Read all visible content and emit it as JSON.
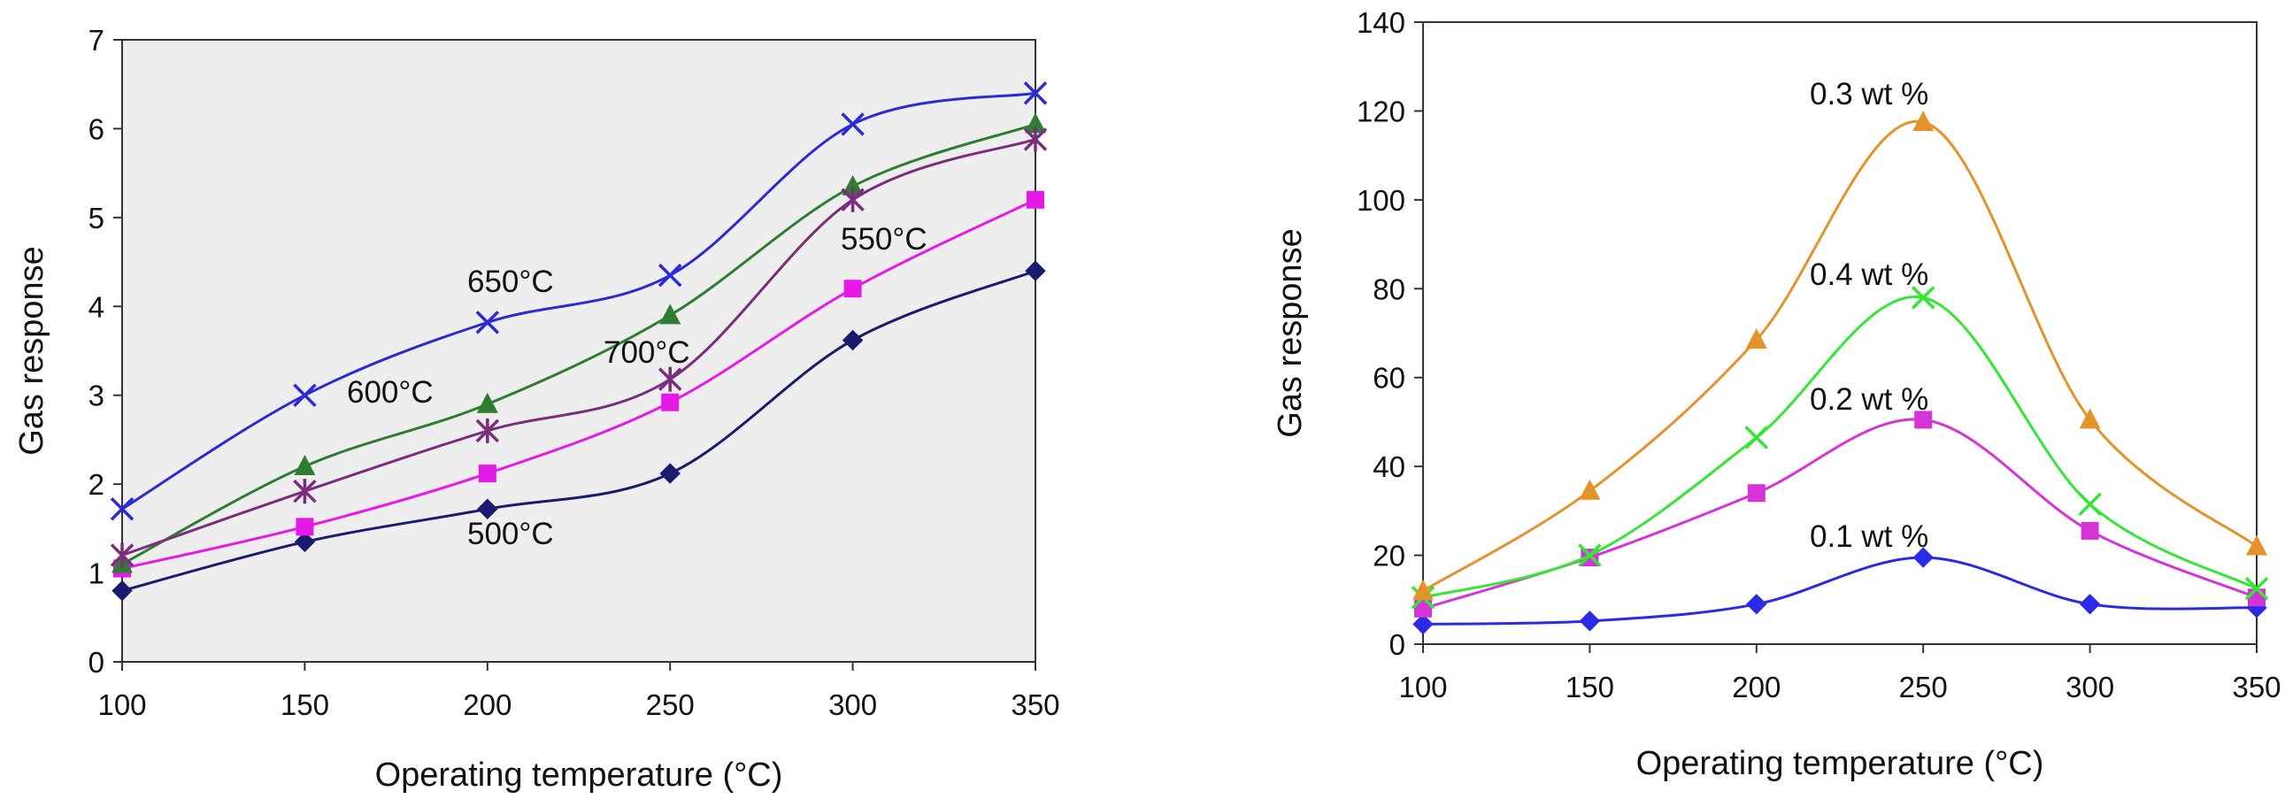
{
  "chart_data": [
    {
      "type": "line",
      "title": "",
      "xlabel": "Operating temperature (°C)",
      "ylabel": "Gas response",
      "xlim": [
        100,
        350
      ],
      "ylim": [
        0,
        7
      ],
      "x_ticks": [
        100,
        150,
        200,
        250,
        300,
        350
      ],
      "y_ticks": [
        0,
        1,
        2,
        3,
        4,
        5,
        6,
        7
      ],
      "x": [
        100,
        150,
        200,
        250,
        300,
        350
      ],
      "series": [
        {
          "name": "500°C",
          "color": "#1a1a6e",
          "marker": "diamond",
          "values": [
            0.8,
            1.35,
            1.72,
            2.12,
            3.62,
            4.4
          ]
        },
        {
          "name": "550°C",
          "color": "#e619e6",
          "marker": "square",
          "values": [
            1.05,
            1.52,
            2.12,
            2.92,
            4.2,
            5.2
          ]
        },
        {
          "name": "600°C",
          "color": "#2e7d32",
          "marker": "triangle",
          "values": [
            1.1,
            2.2,
            2.9,
            3.9,
            5.35,
            6.05
          ]
        },
        {
          "name": "700°C",
          "color": "#7b2c7b",
          "marker": "asterisk",
          "values": [
            1.2,
            1.92,
            2.6,
            3.18,
            5.2,
            5.88
          ]
        },
        {
          "name": "650°C",
          "color": "#2a2ad6",
          "marker": "x",
          "values": [
            1.72,
            3.0,
            3.82,
            4.35,
            6.05,
            6.4
          ]
        }
      ],
      "annotations": [
        {
          "text": "650°C",
          "series": "650°C"
        },
        {
          "text": "600°C",
          "series": "600°C"
        },
        {
          "text": "700°C",
          "series": "700°C"
        },
        {
          "text": "550°C",
          "series": "550°C"
        },
        {
          "text": "500°C",
          "series": "500°C"
        }
      ]
    },
    {
      "type": "line",
      "title": "",
      "xlabel": "Operating temperature (°C)",
      "ylabel": "Gas response",
      "xlim": [
        100,
        350
      ],
      "ylim": [
        0,
        140
      ],
      "x_ticks": [
        100,
        150,
        200,
        250,
        300,
        350
      ],
      "y_ticks": [
        0,
        20,
        40,
        60,
        80,
        100,
        120,
        140
      ],
      "x": [
        100,
        150,
        200,
        250,
        300,
        350
      ],
      "series": [
        {
          "name": "0.1 wt %",
          "color": "#2a2ae6",
          "marker": "diamond",
          "values": [
            4.5,
            5.2,
            9.0,
            19.5,
            9.0,
            8.2
          ]
        },
        {
          "name": "0.2 wt %",
          "color": "#d633d6",
          "marker": "square",
          "values": [
            8.0,
            19.5,
            34.0,
            50.5,
            25.5,
            10.5
          ]
        },
        {
          "name": "0.4 wt %",
          "color": "#33e633",
          "marker": "x",
          "values": [
            10.5,
            20.0,
            46.5,
            78.0,
            31.5,
            12.5
          ]
        },
        {
          "name": "0.3 wt %",
          "color": "#e6922a",
          "marker": "triangle",
          "values": [
            12.0,
            34.5,
            68.5,
            117.5,
            50.5,
            22.0
          ]
        }
      ],
      "annotations": [
        {
          "text": "0.3 wt %",
          "series": "0.3 wt %"
        },
        {
          "text": "0.4 wt %",
          "series": "0.4 wt %"
        },
        {
          "text": "0.2 wt %",
          "series": "0.2 wt %"
        },
        {
          "text": "0.1 wt %",
          "series": "0.1 wt %"
        }
      ]
    }
  ]
}
